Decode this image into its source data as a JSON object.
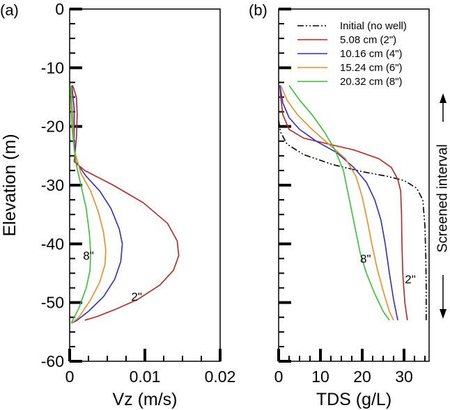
{
  "chart_data": [
    {
      "type": "line",
      "panel_label": "(a)",
      "xlabel": "Vz (m/s)",
      "ylabel": "Elevation (m)",
      "xlim": [
        0,
        0.02
      ],
      "ylim": [
        -60,
        0
      ],
      "x_ticks": [
        0,
        0.01,
        0.02
      ],
      "x_tick_labels": [
        "0",
        "0.01",
        "0.02"
      ],
      "y_ticks": [
        0,
        -10,
        -20,
        -30,
        -40,
        -50,
        -60
      ],
      "y_tick_labels": [
        "0",
        "-10",
        "-20",
        "-30",
        "-40",
        "-50",
        "-60"
      ],
      "series": [
        {
          "name": "5.08 cm (2\")",
          "color": "#c0211d",
          "x": [
            0.0004,
            0.0009,
            0.001,
            0.0009,
            0.0006,
            0.002,
            0.0058,
            0.0098,
            0.013,
            0.0143,
            0.0145,
            0.0138,
            0.012,
            0.009,
            0.006,
            0.0036,
            0.002
          ],
          "y": [
            -13,
            -15,
            -18,
            -22,
            -26,
            -27.5,
            -30,
            -33,
            -36.5,
            -39.5,
            -42,
            -44.5,
            -47,
            -49.5,
            -51.2,
            -52.4,
            -53
          ]
        },
        {
          "name": "10.16 cm (4\")",
          "color": "#2b2bd9",
          "x": [
            0.0003,
            0.0006,
            0.0006,
            0.0008,
            0.0022,
            0.004,
            0.0055,
            0.0066,
            0.007,
            0.0068,
            0.006,
            0.0045,
            0.0025,
            0.001,
            0.0003
          ],
          "y": [
            -13,
            -17,
            -22,
            -26,
            -28.5,
            -31,
            -34,
            -37.5,
            -40,
            -43,
            -46,
            -49,
            -51.5,
            -53,
            -53.5
          ]
        },
        {
          "name": "15.24 cm (6\")",
          "color": "#f08a1c",
          "x": [
            0.0002,
            0.0004,
            0.0006,
            0.0015,
            0.0028,
            0.0038,
            0.0045,
            0.0048,
            0.0047,
            0.004,
            0.0028,
            0.0012,
            0.0003
          ],
          "y": [
            -13,
            -18,
            -24,
            -28,
            -31,
            -34.5,
            -38,
            -41,
            -43.5,
            -46.5,
            -49.5,
            -52.5,
            -53.5
          ]
        },
        {
          "name": "20.32 cm (8\")",
          "color": "#2fc42f",
          "x": [
            0.0001,
            0.0003,
            0.0008,
            0.0015,
            0.0022,
            0.0026,
            0.0028,
            0.0027,
            0.0022,
            0.0012,
            0.0002
          ],
          "y": [
            -13,
            -20,
            -26,
            -30,
            -34,
            -38,
            -41.5,
            -44.5,
            -47.5,
            -51,
            -53.5
          ]
        }
      ],
      "annotations": [
        {
          "text": "8\"",
          "x": 0.0025,
          "y": -42
        },
        {
          "text": "2\"",
          "x": 0.0089,
          "y": -49
        }
      ]
    },
    {
      "type": "line",
      "panel_label": "(b)",
      "xlabel": "TDS (g/L)",
      "ylabel": "",
      "xlim": [
        0,
        36
      ],
      "ylim": [
        -60,
        0
      ],
      "x_ticks": [
        0,
        10,
        20,
        30
      ],
      "x_tick_labels": [
        "0",
        "10",
        "20",
        "30"
      ],
      "y_ticks": [
        0,
        -10,
        -20,
        -30,
        -40,
        -50,
        -60
      ],
      "series": [
        {
          "name": "Initial (no well)",
          "color": "#000000",
          "dash": "dash-dot-dot",
          "x": [
            0,
            0.5,
            2,
            6,
            13,
            20,
            26,
            30,
            33,
            34.5,
            35,
            35.2,
            35.3,
            35.3
          ],
          "y": [
            -19,
            -21,
            -23,
            -24.8,
            -26.5,
            -27.7,
            -28.5,
            -29.2,
            -30.5,
            -32.5,
            -37,
            -42,
            -47,
            -53
          ]
        },
        {
          "name": "5.08 cm (2\")",
          "color": "#c0211d",
          "x": [
            0.3,
            0.5,
            1,
            2.5,
            6,
            12,
            18,
            24,
            27,
            28.5,
            29.2,
            29.4,
            29.5,
            29.7,
            30.2,
            30.8
          ],
          "y": [
            -13,
            -15,
            -18,
            -20.5,
            -22,
            -23,
            -24,
            -25.5,
            -27,
            -29,
            -31,
            -35,
            -40,
            -45,
            -50,
            -53
          ]
        },
        {
          "name": "10.16 cm (4\")",
          "color": "#2b2bd9",
          "x": [
            0.3,
            1,
            2.5,
            5,
            9,
            14,
            18,
            21,
            23,
            24.5,
            25.5,
            26.5,
            27.5,
            28.5
          ],
          "y": [
            -13,
            -16,
            -18.5,
            -20.5,
            -22.5,
            -24.5,
            -27,
            -29.5,
            -32.5,
            -36,
            -40,
            -45,
            -49.5,
            -53
          ]
        },
        {
          "name": "15.24 cm (6\")",
          "color": "#f08a1c",
          "x": [
            0.5,
            2,
            4.5,
            8,
            12,
            16,
            18.5,
            20,
            21.2,
            22.3,
            23.5,
            25,
            26.5,
            27.5
          ],
          "y": [
            -13,
            -15.5,
            -18,
            -20.5,
            -23,
            -25.5,
            -28.5,
            -32,
            -36,
            -40,
            -44,
            -48,
            -51.5,
            -53
          ]
        },
        {
          "name": "20.32 cm (8\")",
          "color": "#2fc42f",
          "x": [
            2.5,
            5,
            8,
            11,
            13.5,
            15.5,
            16.5,
            17.5,
            18.5,
            19.5,
            21,
            23,
            25,
            26.5
          ],
          "y": [
            -13,
            -15.5,
            -18,
            -21,
            -24,
            -27.5,
            -31,
            -34.5,
            -38,
            -41.5,
            -45,
            -48.5,
            -51.5,
            -53
          ]
        }
      ],
      "annotations": [
        {
          "text": "8\"",
          "x": 20.8,
          "y": -42.5
        },
        {
          "text": "2\"",
          "x": 31.5,
          "y": -46
        }
      ],
      "side_annotation": "Screened interval"
    }
  ]
}
